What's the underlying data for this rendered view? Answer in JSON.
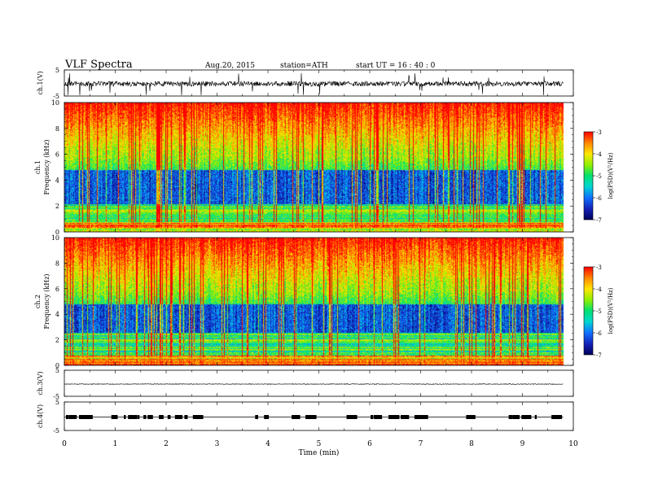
{
  "header": {
    "title": "VLF  Spectra",
    "date": "Aug.20, 2015",
    "station": "station=ATH",
    "start": "start  UT  =   16 : 40 : 0"
  },
  "chart_data": [
    {
      "type": "line",
      "panel": "ch1-waveform",
      "ylabel": "ch.1(V)",
      "yticks": [
        "5",
        "-5"
      ],
      "ylim": [
        -5,
        5
      ],
      "xlim": [
        0,
        10
      ],
      "signal_end_min": 9.8
    },
    {
      "type": "heatmap",
      "panel": "ch1-spectrogram",
      "ylabel_channel": "ch.1",
      "ylabel": "Frequency  (kHz)",
      "yticks": [
        "10",
        "8",
        "6",
        "4",
        "2",
        "0"
      ],
      "ylim": [
        0,
        10
      ],
      "xlim": [
        0,
        10
      ],
      "signal_end_min": 9.8,
      "colorbar_label": "log(PSD)(V²/Hz)",
      "colorbar_ticks": [
        "-3",
        "-4",
        "-5",
        "-6",
        "-7"
      ],
      "colorbar_range": [
        -7,
        -3
      ]
    },
    {
      "type": "heatmap",
      "panel": "ch2-spectrogram",
      "ylabel_channel": "ch.2",
      "ylabel": "Frequency  (kHz)",
      "yticks": [
        "10",
        "8",
        "6",
        "4",
        "2",
        "0"
      ],
      "ylim": [
        0,
        10
      ],
      "xlim": [
        0,
        10
      ],
      "signal_end_min": 9.8,
      "colorbar_label": "log(PSD)(V²/Hz)",
      "colorbar_ticks": [
        "-3",
        "-4",
        "-5",
        "-6",
        "-7"
      ],
      "colorbar_range": [
        -7,
        -3
      ]
    },
    {
      "type": "line",
      "panel": "ch3-waveform",
      "ylabel": "ch.3(V)",
      "yticks": [
        "5",
        "-5"
      ],
      "ylim": [
        -5,
        5
      ],
      "xlim": [
        0,
        10
      ],
      "signal_end_min": 9.8
    },
    {
      "type": "line",
      "panel": "ch4-waveform",
      "ylabel": "ch.4(V)",
      "yticks": [
        "5",
        "-5"
      ],
      "ylim": [
        -5,
        5
      ],
      "xlim": [
        0,
        10
      ],
      "signal_end_min": 9.8
    }
  ],
  "xaxis": {
    "label": "Time  (min)",
    "ticks": [
      "0",
      "1",
      "2",
      "3",
      "4",
      "5",
      "6",
      "7",
      "8",
      "9",
      "10"
    ]
  },
  "colorscale": [
    "#ff0000",
    "#ff8a00",
    "#ffe600",
    "#8cf000",
    "#00e070",
    "#00d8d0",
    "#1070ff",
    "#1420b4",
    "#00005a"
  ]
}
